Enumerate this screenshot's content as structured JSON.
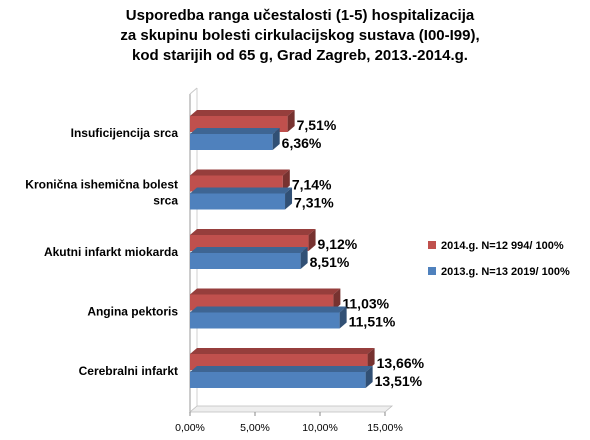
{
  "chart_data": {
    "type": "bar",
    "orientation": "horizontal",
    "title": [
      "Usporedba ranga učestalosti (1-5) hospitalizacija",
      "za skupinu bolesti cirkulacijskog sustava (I00-I99),",
      "kod starijih od 65 g, Grad Zagreb, 2013.-2014.g."
    ],
    "categories": [
      [
        "Insuficijencija srca"
      ],
      [
        "Kronična ishemična bolest",
        "srca"
      ],
      [
        "Akutni infarkt miokarda"
      ],
      [
        "Angina pektoris"
      ],
      [
        "Cerebralni infarkt"
      ]
    ],
    "series": [
      {
        "name": "2014.g. N=12 994/ 100%",
        "color": "#c0504d",
        "values": [
          7.51,
          7.14,
          9.12,
          11.03,
          13.66
        ],
        "labels": [
          "7,51%",
          "7,14%",
          "9,12%",
          "11,03%",
          "13,66%"
        ]
      },
      {
        "name": "2013.g. N=13 2019/ 100%",
        "color": "#4f81bd",
        "values": [
          6.36,
          7.31,
          8.51,
          11.51,
          13.51
        ],
        "labels": [
          "6,36%",
          "7,31%",
          "8,51%",
          "11,51%",
          "13,51%"
        ]
      }
    ],
    "xlim": [
      0,
      15
    ],
    "xticks": [
      0,
      5,
      10,
      15
    ],
    "xtick_labels": [
      "0,00%",
      "5,00%",
      "10,00%",
      "15,00%"
    ],
    "grid": false,
    "legend_position": "right"
  }
}
